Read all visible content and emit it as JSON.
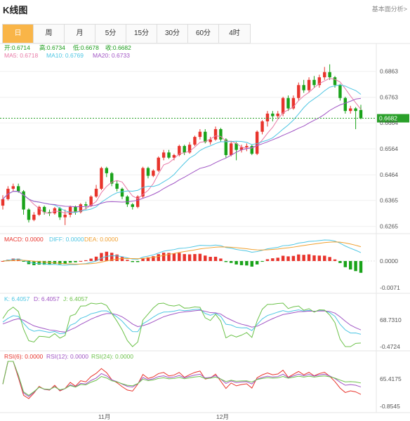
{
  "header": {
    "title": "K线图",
    "link": "基本面分析>"
  },
  "tabs": [
    {
      "label": "日",
      "active": true
    },
    {
      "label": "周"
    },
    {
      "label": "月"
    },
    {
      "label": "5分"
    },
    {
      "label": "15分"
    },
    {
      "label": "30分"
    },
    {
      "label": "60分"
    },
    {
      "label": "4时"
    }
  ],
  "ohlc_info": {
    "open": "开:0.6714",
    "high": "高:0.6734",
    "low": "低:0.6678",
    "close": "收:0.6682"
  },
  "ma_info": {
    "ma5": "MA5: 0.6718",
    "ma10": "MA10: 0.6769",
    "ma20": "MA20: 0.6733"
  },
  "macd_info": {
    "macd": "MACD: 0.0000",
    "diff": "DIFF: 0.0000",
    "dea": "DEA: 0.0000"
  },
  "kdj_info": {
    "k": "K: 6.4057",
    "d": "D: 6.4057",
    "j": "J: 6.4057"
  },
  "rsi_info": {
    "rsi6": "RSI(6): 0.0000",
    "rsi12": "RSI(12): 0.0000",
    "rsi24": "RSI(24): 0.0000"
  },
  "price_axis": [
    "0.6863",
    "0.6763",
    "0.6664",
    "0.6564",
    "0.6464",
    "0.6365",
    "0.6265"
  ],
  "current_price": "0.6682",
  "macd_axis": [
    "0.0000",
    "-0.0071"
  ],
  "kdj_axis": [
    "68.7310",
    "-0.4724"
  ],
  "rsi_axis": [
    "65.4175",
    "-0.8545"
  ],
  "x_labels": [
    "11月",
    "12月"
  ],
  "colors": {
    "up": "#e8342c",
    "down": "#1aa31a",
    "ma5": "#e879a6",
    "ma10": "#4ec6e3",
    "ma20": "#a054c4",
    "accent": "#f9b548"
  },
  "chart_data": {
    "type": "candlestick",
    "candles": [
      [
        0.6345,
        0.637,
        0.633,
        0.6385
      ],
      [
        0.637,
        0.641,
        0.6365,
        0.642
      ],
      [
        0.641,
        0.642,
        0.64,
        0.643
      ],
      [
        0.642,
        0.64,
        0.6395,
        0.643
      ],
      [
        0.64,
        0.633,
        0.631,
        0.6405
      ],
      [
        0.633,
        0.629,
        0.628,
        0.6335
      ],
      [
        0.629,
        0.631,
        0.6285,
        0.632
      ],
      [
        0.631,
        0.634,
        0.6305,
        0.6345
      ],
      [
        0.634,
        0.632,
        0.631,
        0.6345
      ],
      [
        0.632,
        0.6315,
        0.6305,
        0.633
      ],
      [
        0.6315,
        0.6335,
        0.631,
        0.634
      ],
      [
        0.6335,
        0.63,
        0.629,
        0.634
      ],
      [
        0.63,
        0.631,
        0.627,
        0.633
      ],
      [
        0.631,
        0.634,
        0.63,
        0.6345
      ],
      [
        0.634,
        0.632,
        0.631,
        0.6345
      ],
      [
        0.632,
        0.635,
        0.6315,
        0.6355
      ],
      [
        0.635,
        0.6345,
        0.633,
        0.636
      ],
      [
        0.6345,
        0.638,
        0.634,
        0.6385
      ],
      [
        0.638,
        0.641,
        0.6375,
        0.6425
      ],
      [
        0.641,
        0.649,
        0.6405,
        0.6495
      ],
      [
        0.649,
        0.647,
        0.6455,
        0.6495
      ],
      [
        0.647,
        0.643,
        0.642,
        0.6475
      ],
      [
        0.643,
        0.641,
        0.64,
        0.644
      ],
      [
        0.641,
        0.638,
        0.637,
        0.6415
      ],
      [
        0.638,
        0.635,
        0.634,
        0.6385
      ],
      [
        0.635,
        0.634,
        0.633,
        0.6355
      ],
      [
        0.634,
        0.638,
        0.6335,
        0.6385
      ],
      [
        0.638,
        0.649,
        0.6375,
        0.6495
      ],
      [
        0.649,
        0.646,
        0.645,
        0.6495
      ],
      [
        0.646,
        0.648,
        0.6455,
        0.6485
      ],
      [
        0.648,
        0.653,
        0.6475,
        0.6535
      ],
      [
        0.653,
        0.655,
        0.652,
        0.656
      ],
      [
        0.655,
        0.653,
        0.6525,
        0.656
      ],
      [
        0.653,
        0.654,
        0.652,
        0.6545
      ],
      [
        0.654,
        0.6575,
        0.6535,
        0.658
      ],
      [
        0.6575,
        0.655,
        0.654,
        0.658
      ],
      [
        0.655,
        0.658,
        0.6545,
        0.659
      ],
      [
        0.658,
        0.661,
        0.6575,
        0.6615
      ],
      [
        0.661,
        0.663,
        0.66,
        0.664
      ],
      [
        0.663,
        0.659,
        0.6585,
        0.664
      ],
      [
        0.659,
        0.66,
        0.658,
        0.661
      ],
      [
        0.66,
        0.664,
        0.6595,
        0.665
      ],
      [
        0.664,
        0.66,
        0.659,
        0.6645
      ],
      [
        0.66,
        0.654,
        0.653,
        0.6605
      ],
      [
        0.654,
        0.6585,
        0.6535,
        0.6595
      ],
      [
        0.6585,
        0.656,
        0.652,
        0.659
      ],
      [
        0.656,
        0.657,
        0.655,
        0.658
      ],
      [
        0.657,
        0.6575,
        0.6555,
        0.6585
      ],
      [
        0.6575,
        0.6545,
        0.654,
        0.658
      ],
      [
        0.6545,
        0.663,
        0.654,
        0.6635
      ],
      [
        0.663,
        0.667,
        0.662,
        0.6675
      ],
      [
        0.667,
        0.67,
        0.665,
        0.671
      ],
      [
        0.67,
        0.669,
        0.667,
        0.671
      ],
      [
        0.669,
        0.67,
        0.668,
        0.671
      ],
      [
        0.67,
        0.676,
        0.669,
        0.6765
      ],
      [
        0.676,
        0.672,
        0.671,
        0.677
      ],
      [
        0.672,
        0.676,
        0.6715,
        0.677
      ],
      [
        0.676,
        0.681,
        0.675,
        0.682
      ],
      [
        0.681,
        0.679,
        0.678,
        0.683
      ],
      [
        0.679,
        0.683,
        0.678,
        0.684
      ],
      [
        0.683,
        0.681,
        0.68,
        0.6845
      ],
      [
        0.681,
        0.684,
        0.68,
        0.685
      ],
      [
        0.684,
        0.686,
        0.683,
        0.688
      ],
      [
        0.686,
        0.684,
        0.683,
        0.689
      ],
      [
        0.684,
        0.681,
        0.68,
        0.6845
      ],
      [
        0.681,
        0.676,
        0.675,
        0.6815
      ],
      [
        0.676,
        0.671,
        0.67,
        0.6765
      ],
      [
        0.671,
        0.672,
        0.67,
        0.673
      ],
      [
        0.672,
        0.671,
        0.664,
        0.6725
      ],
      [
        0.6714,
        0.6682,
        0.6678,
        0.6734
      ]
    ],
    "ylim": [
      0.6245,
      0.69
    ]
  }
}
